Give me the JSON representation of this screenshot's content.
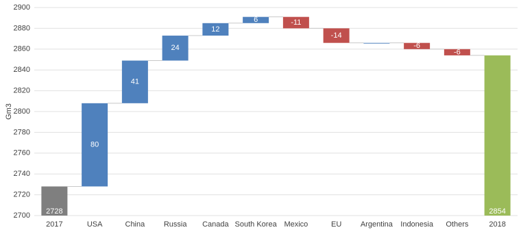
{
  "chart_data": {
    "type": "waterfall",
    "y_label": "Gm3",
    "categories": [
      "2017",
      "USA",
      "China",
      "Russia",
      "Canada",
      "South Korea",
      "Mexico",
      "EU",
      "Argentina",
      "Indonesia",
      "Others",
      "2018"
    ],
    "values": [
      2728,
      80,
      41,
      24,
      12,
      6,
      -11,
      -14,
      0,
      -6,
      -6,
      2854
    ],
    "value_labels": [
      "2728",
      "80",
      "41",
      "24",
      "12",
      "6",
      "-11",
      "-14",
      null,
      "-6",
      "-6",
      "2854"
    ],
    "is_total": [
      true,
      false,
      false,
      false,
      false,
      false,
      false,
      false,
      false,
      false,
      false,
      true
    ],
    "colors": [
      "#7f7f7f",
      "#4f81bd",
      "#4f81bd",
      "#4f81bd",
      "#4f81bd",
      "#4f81bd",
      "#c0504d",
      "#c0504d",
      "#4f81bd",
      "#c0504d",
      "#c0504d",
      "#9bbb59"
    ],
    "ylim": [
      2700,
      2900
    ],
    "yticks": [
      2700,
      2720,
      2740,
      2760,
      2780,
      2800,
      2820,
      2840,
      2860,
      2880,
      2900
    ],
    "grid": true
  }
}
